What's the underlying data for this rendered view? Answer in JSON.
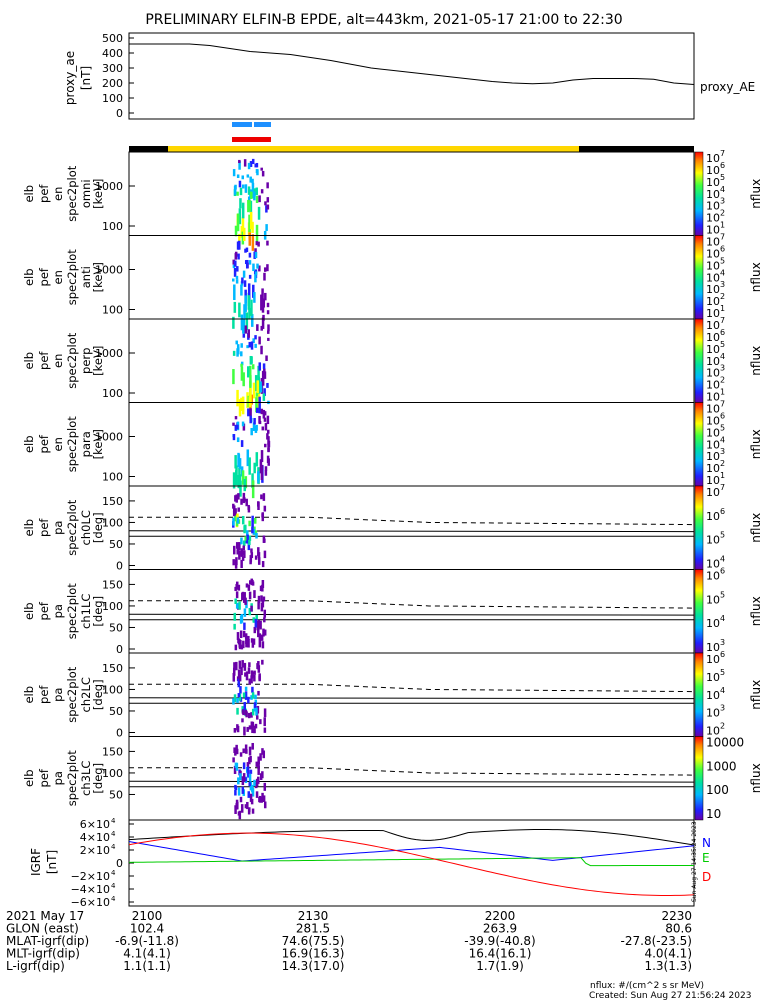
{
  "title": "PRELIMINARY ELFIN-B EPDE, alt=443km, 2021-05-17 21:00 to 22:30",
  "proxy_ae": {
    "ylabel": [
      "proxy_ae",
      "[nT]"
    ],
    "legend": "proxy_AE",
    "yticks": [
      "500",
      "400",
      "300",
      "200",
      "100",
      "0"
    ],
    "values": [
      460,
      460,
      460,
      460,
      450,
      430,
      410,
      400,
      390,
      370,
      350,
      325,
      300,
      285,
      270,
      255,
      240,
      225,
      210,
      200,
      195,
      200,
      220,
      230,
      230,
      230,
      225,
      200,
      190
    ]
  },
  "spectrogram_panels": [
    {
      "label": [
        "elb",
        "pef",
        "en",
        "spec2plot",
        "omni",
        "[keV]"
      ],
      "yticks": [
        "1000",
        "100"
      ]
    },
    {
      "label": [
        "elb",
        "pef",
        "en",
        "spec2plot",
        "anti",
        "[keV]"
      ],
      "yticks": [
        "1000",
        "100"
      ]
    },
    {
      "label": [
        "elb",
        "pef",
        "en",
        "spec2plot",
        "perp",
        "[keV]"
      ],
      "yticks": [
        "1000",
        "100"
      ]
    },
    {
      "label": [
        "elb",
        "pef",
        "en",
        "spec2plot",
        "para",
        "[keV]"
      ],
      "yticks": [
        "1000",
        "100"
      ]
    }
  ],
  "pa_panels": [
    {
      "label": [
        "elb",
        "pef",
        "pa",
        "spec2plot",
        "ch0LC",
        "[deg]"
      ],
      "yticks": [
        "150",
        "100",
        "50",
        "0"
      ]
    },
    {
      "label": [
        "elb",
        "pef",
        "pa",
        "spec2plot",
        "ch1LC",
        "[deg]"
      ],
      "yticks": [
        "150",
        "100",
        "50",
        "0"
      ]
    },
    {
      "label": [
        "elb",
        "pef",
        "pa",
        "spec2plot",
        "ch2LC",
        "[deg]"
      ],
      "yticks": [
        "150",
        "100",
        "50",
        "0"
      ]
    },
    {
      "label": [
        "elb",
        "pef",
        "pa",
        "spec2plot",
        "ch3LC",
        "[deg]"
      ],
      "yticks": [
        "150",
        "100",
        "50"
      ]
    }
  ],
  "colorbars": [
    {
      "unit": "nflux",
      "min_exp": 1,
      "max_exp": 7
    },
    {
      "unit": "nflux",
      "min_exp": 1,
      "max_exp": 7
    },
    {
      "unit": "nflux",
      "min_exp": 1,
      "max_exp": 7
    },
    {
      "unit": "nflux",
      "min_exp": 1,
      "max_exp": 7
    },
    {
      "unit": "nflux",
      "min_exp": 4,
      "max_exp": 7
    },
    {
      "unit": "nflux",
      "min_exp": 3,
      "max_exp": 6
    },
    {
      "unit": "nflux",
      "min_exp": 2,
      "max_exp": 6
    },
    {
      "unit": "nflux",
      "plain_ticks": [
        "10000",
        "1000",
        "100",
        "10"
      ]
    }
  ],
  "grf": {
    "ylabel": [
      "IGRF",
      "[nT]"
    ],
    "components": [
      {
        "name": "N",
        "color": "#0000ff"
      },
      {
        "name": "E",
        "color": "#00cc00"
      },
      {
        "name": "D",
        "color": "#ff0000"
      }
    ],
    "timestamp_vertical": "Sun Aug 27 14:35:24 2023"
  },
  "chart_data": {
    "type": "line",
    "title": "PRELIMINARY ELFIN-B EPDE, alt=443km, 2021-05-17 21:00 to 22:30",
    "x_ticks": [
      "2100",
      "2130",
      "2200",
      "2230"
    ],
    "series": [
      {
        "name": "proxy_AE",
        "values": [
          460,
          460,
          460,
          460,
          450,
          430,
          410,
          400,
          390,
          370,
          350,
          325,
          300,
          285,
          270,
          255,
          240,
          225,
          210,
          200,
          195,
          200,
          220,
          230,
          230,
          230,
          225,
          200,
          190
        ]
      }
    ]
  },
  "footer": {
    "rows": [
      {
        "label": "2021 May 17",
        "values": [
          "2100",
          "2130",
          "2200",
          "2230"
        ]
      },
      {
        "label": "GLON (east)",
        "values": [
          "102.4",
          "281.5",
          "263.9",
          "80.6"
        ]
      },
      {
        "label": "MLAT-igrf(dip)",
        "values": [
          "-6.9(-11.8)",
          "74.6(75.5)",
          "-39.9(-40.8)",
          "-27.8(-23.5)"
        ]
      },
      {
        "label": "MLT-igrf(dip)",
        "values": [
          "4.1(4.1)",
          "16.9(16.3)",
          "16.4(16.1)",
          "4.0(4.1)"
        ]
      },
      {
        "label": "L-igrf(dip)",
        "values": [
          "1.1(1.1)",
          "14.3(17.0)",
          "1.7(1.9)",
          "1.3(1.3)"
        ]
      }
    ],
    "nflux_note": "nflux: #/(cm^2 s sr MeV)",
    "created": "Created: Sun Aug 27 21:56:24 2023"
  }
}
